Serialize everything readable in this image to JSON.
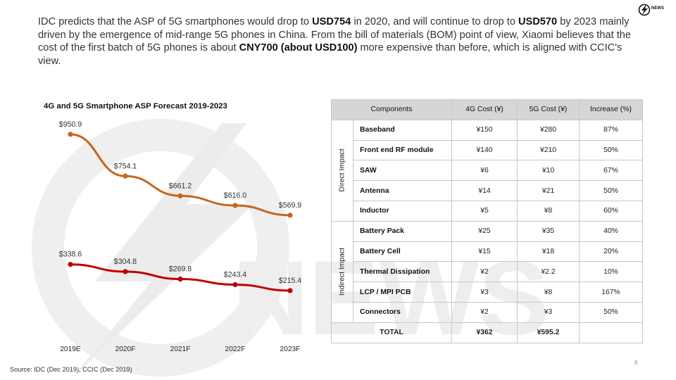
{
  "header": {
    "part1": "IDC predicts that the ASP of 5G smartphones would drop to ",
    "bold1": "USD754",
    "part2": " in 2020, and will continue to drop to ",
    "bold2": "USD570",
    "part3": " by 2023 mainly driven by the emergence of mid-range 5G phones in China. From the bill of materials (BOM) point of view, Xiaomi believes that the cost of the first batch of 5G phones is about ",
    "bold3": "CNY700 (about USD100)",
    "part4": " more expensive than before, which is aligned with CCIC's view."
  },
  "brand": {
    "logo_text": "NEWS",
    "watermark_text": "NEWS"
  },
  "colors": {
    "line_5g": "#c8651b",
    "line_4g": "#c00000",
    "table_header_bg": "#d6d6d6",
    "watermark": "#eeeeee"
  },
  "chart_data": {
    "type": "line",
    "title": "4G and 5G Smartphone ASP Forecast 2019-2023",
    "categories": [
      "2019E",
      "2020F",
      "2021F",
      "2022F",
      "2023F"
    ],
    "series": [
      {
        "values": [
          950.9,
          754.1,
          661.2,
          616.0,
          569.9
        ],
        "labels": [
          "$950.9",
          "$754.1",
          "$661.2",
          "$616.0",
          "$569.9"
        ],
        "color": "#c8651b"
      },
      {
        "values": [
          338.6,
          304.8,
          269.8,
          243.4,
          215.4
        ],
        "labels": [
          "$338.6",
          "$304.8",
          "$269.8",
          "$243.4",
          "$215.4"
        ],
        "color": "#c00000"
      }
    ],
    "ylim": [
      0,
      1000
    ],
    "grid": false,
    "legend": "none"
  },
  "table": {
    "headers": [
      "Components",
      "4G Cost (¥)",
      "5G Cost (¥)",
      "Increase (%)"
    ],
    "groups": [
      {
        "label": "Direct Impact",
        "rows": [
          {
            "component": "Baseband",
            "cost_4g": "¥150",
            "cost_5g": "¥280",
            "increase": "87%"
          },
          {
            "component": "Front end RF module",
            "cost_4g": "¥140",
            "cost_5g": "¥210",
            "increase": "50%"
          },
          {
            "component": "SAW",
            "cost_4g": "¥6",
            "cost_5g": "¥10",
            "increase": "67%"
          },
          {
            "component": "Antenna",
            "cost_4g": "¥14",
            "cost_5g": "¥21",
            "increase": "50%"
          },
          {
            "component": "Inductor",
            "cost_4g": "¥5",
            "cost_5g": "¥8",
            "increase": "60%"
          }
        ]
      },
      {
        "label": "Indirect Impact",
        "rows": [
          {
            "component": "Battery Pack",
            "cost_4g": "¥25",
            "cost_5g": "¥35",
            "increase": "40%"
          },
          {
            "component": "Battery Cell",
            "cost_4g": "¥15",
            "cost_5g": "¥18",
            "increase": "20%"
          },
          {
            "component": "Thermal Dissipation",
            "cost_4g": "¥2",
            "cost_5g": "¥2.2",
            "increase": "10%"
          },
          {
            "component": "LCP / MPI PCB",
            "cost_4g": "¥3",
            "cost_5g": "¥8",
            "increase": "167%"
          },
          {
            "component": "Connectors",
            "cost_4g": "¥2",
            "cost_5g": "¥3",
            "increase": "50%"
          }
        ]
      }
    ],
    "total": {
      "label": "TOTAL",
      "cost_4g": "¥362",
      "cost_5g": "¥595.2",
      "increase": ""
    }
  },
  "footer": {
    "source": "Source: IDC (Dec 2019), CCIC (Dec 2019)",
    "page_number": "8"
  }
}
